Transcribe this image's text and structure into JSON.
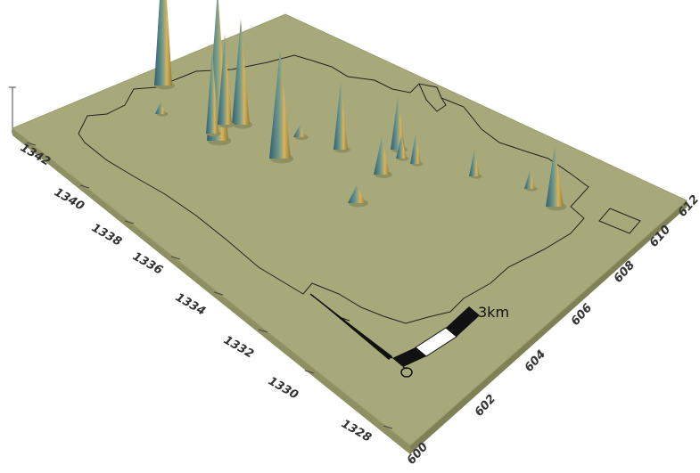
{
  "map": {
    "surface_color": "#a8a97a",
    "surface_shadow": "#8e8f63",
    "outline_color": "#222222",
    "peak_light": "#d9b35a",
    "peak_dark": "#2f5f6e",
    "y_axis": {
      "labels": [
        "1342",
        "1340",
        "1338",
        "1336",
        "1334",
        "1332",
        "1330",
        "1328"
      ]
    },
    "x_axis": {
      "labels": [
        "600",
        "602",
        "604",
        "606",
        "608",
        "610",
        "612"
      ]
    },
    "scale_bar": {
      "label": "3km"
    },
    "peaks": [
      {
        "id": "p1",
        "height": 0.95
      },
      {
        "id": "p2",
        "height": 1.0
      },
      {
        "id": "p3",
        "height": 0.55
      },
      {
        "id": "p4",
        "height": 0.7
      },
      {
        "id": "p5",
        "height": 0.72
      },
      {
        "id": "p6",
        "height": 0.6
      },
      {
        "id": "p7",
        "height": 0.45
      },
      {
        "id": "p8",
        "height": 0.35
      },
      {
        "id": "p9",
        "height": 0.25
      },
      {
        "id": "p10",
        "height": 0.15
      },
      {
        "id": "p11",
        "height": 0.2
      },
      {
        "id": "p12",
        "height": 0.12
      },
      {
        "id": "p13",
        "height": 0.18
      },
      {
        "id": "p14",
        "height": 0.12
      },
      {
        "id": "p15",
        "height": 0.4
      },
      {
        "id": "p16",
        "height": 0.08
      },
      {
        "id": "p17",
        "height": 0.08
      }
    ]
  }
}
